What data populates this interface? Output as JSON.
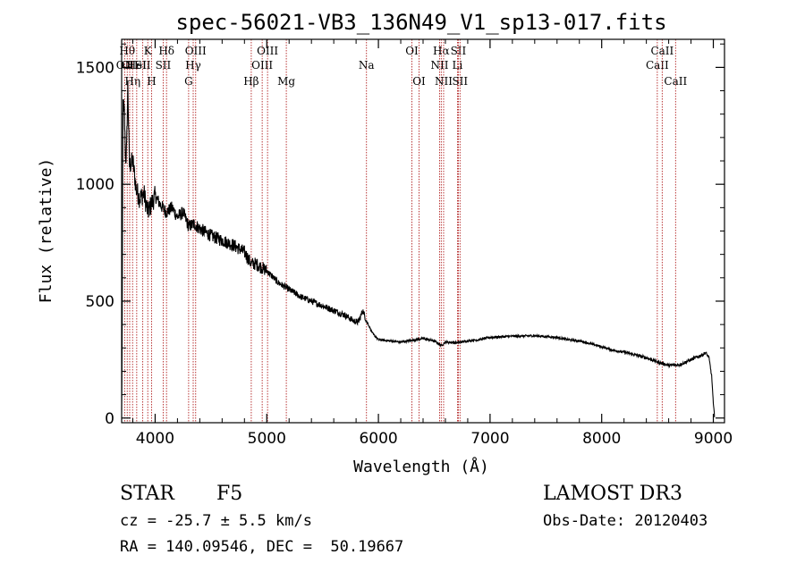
{
  "chart_data": {
    "type": "line",
    "title": "spec-56021-VB3_136N49_V1_sp13-017.fits",
    "xlabel": "Wavelength (Å)",
    "ylabel": "Flux (relative)",
    "xlim": [
      3700,
      9100
    ],
    "ylim": [
      -20,
      1620
    ],
    "xticks": [
      4000,
      5000,
      6000,
      7000,
      8000,
      9000
    ],
    "yticks": [
      0,
      500,
      1000,
      1500
    ],
    "series": [
      {
        "name": "flux",
        "anchors": [
          [
            3700,
            20
          ],
          [
            3705,
            380
          ],
          [
            3712,
            1350
          ],
          [
            3725,
            1300
          ],
          [
            3735,
            1100
          ],
          [
            3745,
            1150
          ],
          [
            3755,
            1420
          ],
          [
            3770,
            1080
          ],
          [
            3800,
            1100
          ],
          [
            3830,
            980
          ],
          [
            3860,
            940
          ],
          [
            3900,
            960
          ],
          [
            3935,
            880
          ],
          [
            3970,
            920
          ],
          [
            4000,
            950
          ],
          [
            4050,
            910
          ],
          [
            4100,
            880
          ],
          [
            4150,
            900
          ],
          [
            4200,
            860
          ],
          [
            4250,
            880
          ],
          [
            4300,
            820
          ],
          [
            4350,
            830
          ],
          [
            4400,
            810
          ],
          [
            4500,
            780
          ],
          [
            4600,
            760
          ],
          [
            4700,
            740
          ],
          [
            4800,
            710
          ],
          [
            4860,
            660
          ],
          [
            4900,
            660
          ],
          [
            5000,
            630
          ],
          [
            5100,
            580
          ],
          [
            5200,
            550
          ],
          [
            5300,
            520
          ],
          [
            5400,
            500
          ],
          [
            5500,
            480
          ],
          [
            5600,
            460
          ],
          [
            5700,
            440
          ],
          [
            5780,
            415
          ],
          [
            5820,
            410
          ],
          [
            5860,
            460
          ],
          [
            5890,
            420
          ],
          [
            5950,
            360
          ],
          [
            6000,
            335
          ],
          [
            6100,
            330
          ],
          [
            6200,
            325
          ],
          [
            6300,
            332
          ],
          [
            6400,
            340
          ],
          [
            6500,
            330
          ],
          [
            6563,
            310
          ],
          [
            6600,
            325
          ],
          [
            6700,
            322
          ],
          [
            6800,
            330
          ],
          [
            6900,
            335
          ],
          [
            7000,
            345
          ],
          [
            7200,
            350
          ],
          [
            7400,
            352
          ],
          [
            7600,
            345
          ],
          [
            7700,
            335
          ],
          [
            7800,
            330
          ],
          [
            7900,
            318
          ],
          [
            8000,
            305
          ],
          [
            8100,
            290
          ],
          [
            8200,
            282
          ],
          [
            8300,
            270
          ],
          [
            8400,
            258
          ],
          [
            8500,
            240
          ],
          [
            8600,
            225
          ],
          [
            8700,
            228
          ],
          [
            8800,
            250
          ],
          [
            8900,
            270
          ],
          [
            8930,
            280
          ],
          [
            8960,
            260
          ],
          [
            8985,
            180
          ],
          [
            9000,
            60
          ],
          [
            9010,
            10
          ]
        ]
      }
    ],
    "line_markers": [
      {
        "wavelength": 3727,
        "label": "OII",
        "row": 2
      },
      {
        "wavelength": 3750,
        "label": "Hθ",
        "row": 1
      },
      {
        "wavelength": 3772,
        "label": "OII",
        "row": 2
      },
      {
        "wavelength": 3798,
        "label": "Hη",
        "row": 3
      },
      {
        "wavelength": 3835,
        "label": "HeI",
        "row": 2
      },
      {
        "wavelength": 3889,
        "label": "SII",
        "row": 2
      },
      {
        "wavelength": 3934,
        "label": "K",
        "row": 1
      },
      {
        "wavelength": 3968,
        "label": "H",
        "row": 3
      },
      {
        "wavelength": 4072,
        "label": "SII",
        "row": 2
      },
      {
        "wavelength": 4102,
        "label": "Hδ",
        "row": 1
      },
      {
        "wavelength": 4300,
        "label": "G",
        "row": 3
      },
      {
        "wavelength": 4341,
        "label": "Hγ",
        "row": 2
      },
      {
        "wavelength": 4363,
        "label": "OIII",
        "row": 1
      },
      {
        "wavelength": 4861,
        "label": "Hβ",
        "row": 3
      },
      {
        "wavelength": 4959,
        "label": "OIII",
        "row": 2
      },
      {
        "wavelength": 5007,
        "label": "OIII",
        "row": 1
      },
      {
        "wavelength": 5175,
        "label": "Mg",
        "row": 3
      },
      {
        "wavelength": 5893,
        "label": "Na",
        "row": 2
      },
      {
        "wavelength": 6300,
        "label": "OI",
        "row": 1
      },
      {
        "wavelength": 6364,
        "label": "OI",
        "row": 3
      },
      {
        "wavelength": 6548,
        "label": "NII",
        "row": 2
      },
      {
        "wavelength": 6563,
        "label": "Hα",
        "row": 1
      },
      {
        "wavelength": 6584,
        "label": "NII",
        "row": 3
      },
      {
        "wavelength": 6708,
        "label": "Li",
        "row": 2
      },
      {
        "wavelength": 6716,
        "label": "SII",
        "row": 1
      },
      {
        "wavelength": 6731,
        "label": "SII",
        "row": 3
      },
      {
        "wavelength": 8498,
        "label": "CaII",
        "row": 2
      },
      {
        "wavelength": 8542,
        "label": "CaII",
        "row": 1
      },
      {
        "wavelength": 8662,
        "label": "CaII",
        "row": 3
      }
    ],
    "colors": {
      "spectrum": "#000000",
      "marker": "#b22222",
      "axis": "#000000"
    }
  },
  "info": {
    "object_class": "STAR",
    "subclass": "F5",
    "survey": "LAMOST DR3",
    "redshift": "cz = -25.7 ± 5.5 km/s",
    "obs_date": "Obs-Date: 20120403",
    "coords": "RA = 140.09546, DEC =  50.19667"
  }
}
